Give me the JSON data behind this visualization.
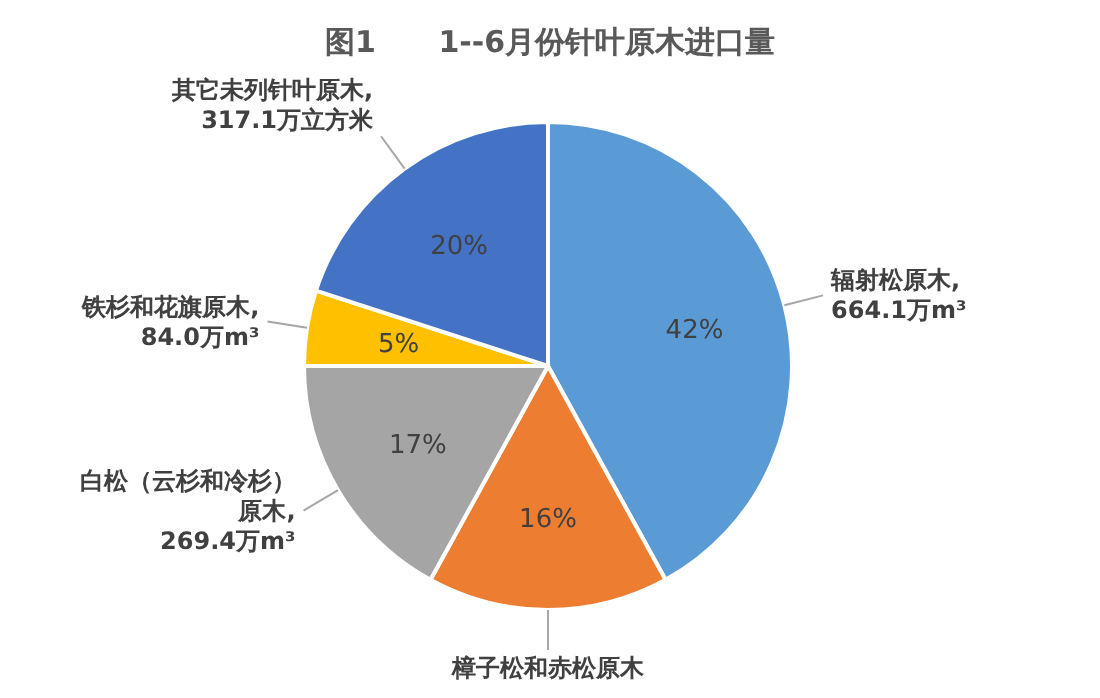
{
  "chart_data": {
    "type": "pie",
    "title": "图1      1--6月份针叶原木进口量",
    "categories": [
      "辐射松原木,\n664.1万m³",
      "樟子松和赤松原木",
      "白松（云杉和冷杉）原木,\n269.4万m³",
      "铁杉和花旗原木,\n84.0万m³",
      "其它未列针叶原木,\n317.1万立方米"
    ],
    "values": [
      42,
      16,
      17,
      5,
      20
    ],
    "colors": [
      "#5b9bd5",
      "#ed7d31",
      "#a5a5a5",
      "#ffc000",
      "#4472c4"
    ],
    "value_labels": [
      "42%",
      "16%",
      "17%",
      "5%",
      "20%"
    ]
  }
}
